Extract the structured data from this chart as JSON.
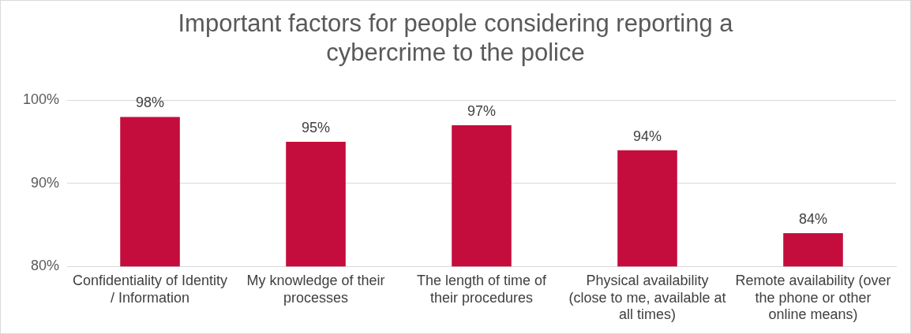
{
  "chart_data": {
    "type": "bar",
    "title": "Important factors for people considering reporting a cybercrime to the police",
    "categories": [
      "Confidentiality of Identity / Information",
      "My knowledge of their processes",
      "The length of time of their procedures",
      "Physical availability (close to me, available at all times)",
      "Remote availability (over the phone or other online means)"
    ],
    "values": [
      98,
      95,
      97,
      94,
      84
    ],
    "value_labels": [
      "98%",
      "95%",
      "97%",
      "94%",
      "84%"
    ],
    "color": "#c40d3c",
    "ylim": [
      80,
      100
    ],
    "yticks": [
      {
        "value": 80,
        "label": "80%"
      },
      {
        "value": 90,
        "label": "90%"
      },
      {
        "value": 100,
        "label": "100%"
      }
    ],
    "grid": "y"
  }
}
